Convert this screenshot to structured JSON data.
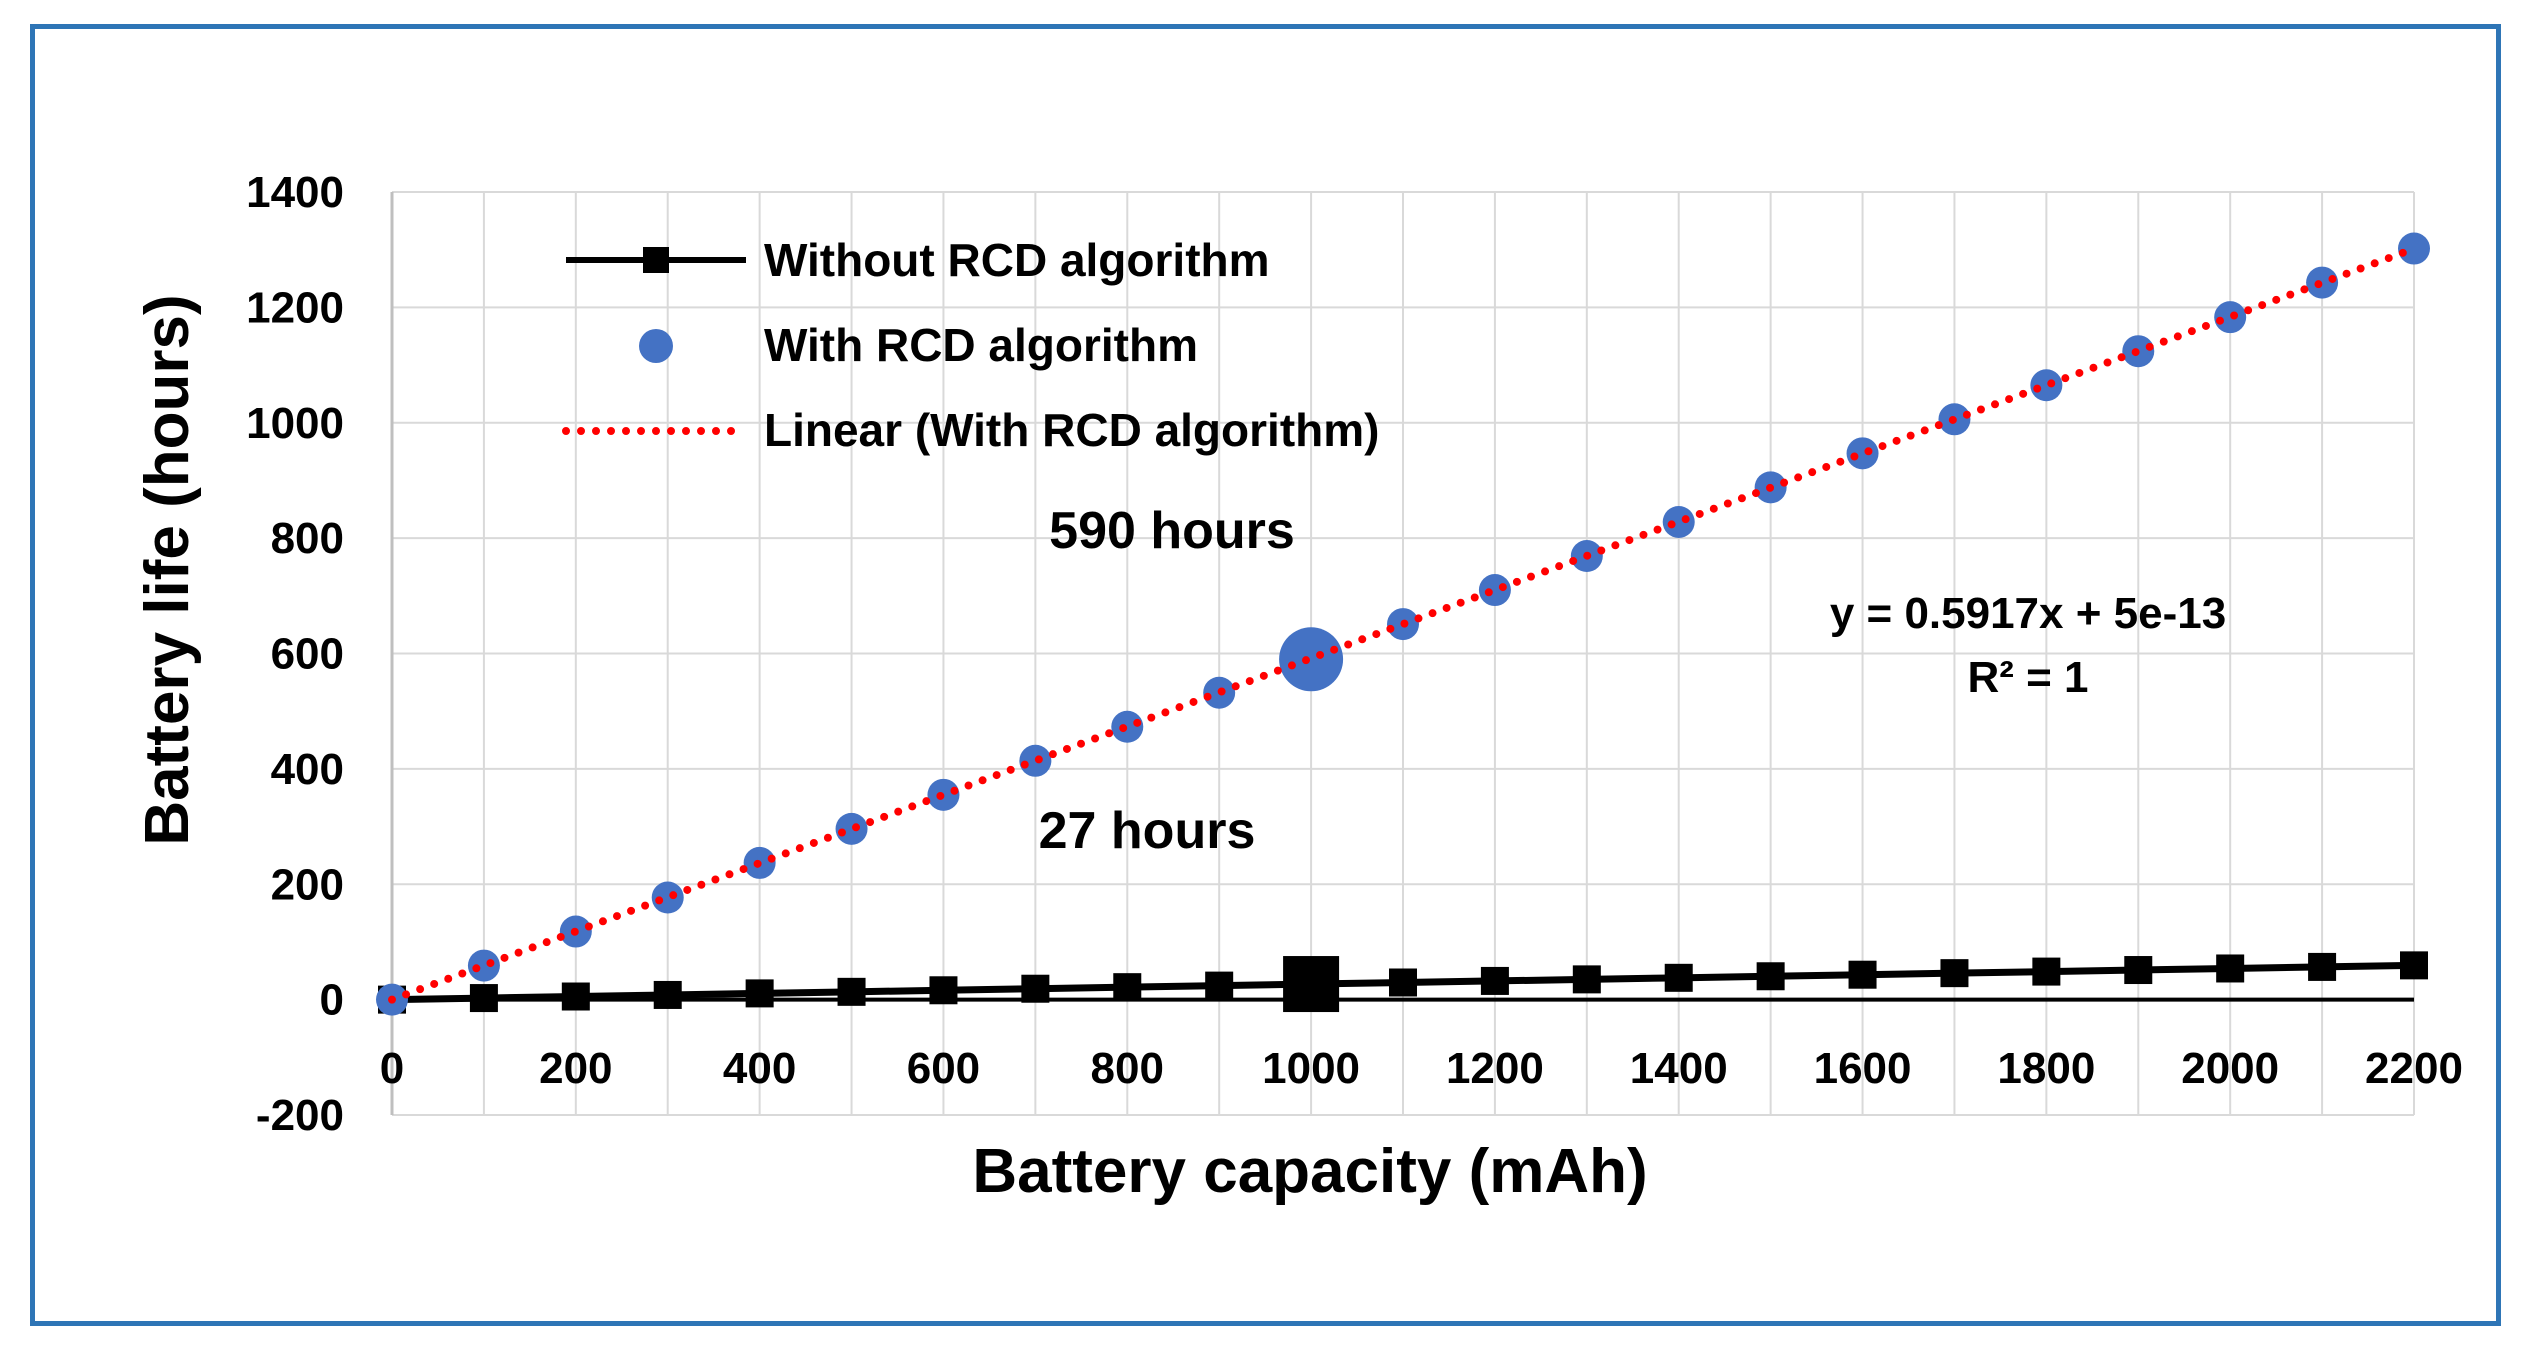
{
  "chart_data": {
    "type": "line",
    "xlabel": "Battery capacity (mAh)",
    "ylabel": "Battery life (hours)",
    "xlim": [
      0,
      2200
    ],
    "ylim": [
      -200,
      1400
    ],
    "xticks": [
      "0",
      "200",
      "400",
      "600",
      "800",
      "1000",
      "1200",
      "1400",
      "1600",
      "1800",
      "2000",
      "2200"
    ],
    "yticks": [
      "-200",
      "0",
      "200",
      "400",
      "600",
      "800",
      "1000",
      "1200",
      "1400"
    ],
    "grid": true,
    "legend_position": "top-left",
    "x": [
      0,
      100,
      200,
      300,
      400,
      500,
      600,
      700,
      800,
      900,
      1000,
      1100,
      1200,
      1300,
      1400,
      1500,
      1600,
      1700,
      1800,
      1900,
      2000,
      2100,
      2200
    ],
    "series": [
      {
        "name": "Without RCD algorithm",
        "style": "line-square-markers",
        "color": "#000000",
        "values": [
          0,
          2.7,
          5.4,
          8.1,
          10.8,
          13.5,
          16.2,
          18.9,
          21.6,
          24.3,
          27,
          29.7,
          32.4,
          35.1,
          37.8,
          40.5,
          43.2,
          45.9,
          48.6,
          51.3,
          54,
          56.7,
          59.4
        ]
      },
      {
        "name": "With RCD algorithm",
        "style": "markers",
        "color": "#4472c4",
        "values": [
          0,
          59,
          118,
          177,
          237,
          296,
          355,
          414,
          473,
          532,
          590,
          651,
          710,
          769,
          828,
          888,
          947,
          1006,
          1065,
          1124,
          1183,
          1243,
          1302
        ]
      },
      {
        "name": "Linear (With RCD algorithm)",
        "style": "dotted-trendline",
        "color": "#ff0000",
        "slope": 0.5917,
        "intercept": 0
      }
    ],
    "highlight": {
      "x": 1000,
      "with_rcd": 590,
      "without_rcd": 27
    },
    "annotations": {
      "with_label": "590 hours",
      "without_label": "27 hours",
      "equation": "y = 0.5917x + 5e-13",
      "r_squared": "R² = 1"
    }
  }
}
